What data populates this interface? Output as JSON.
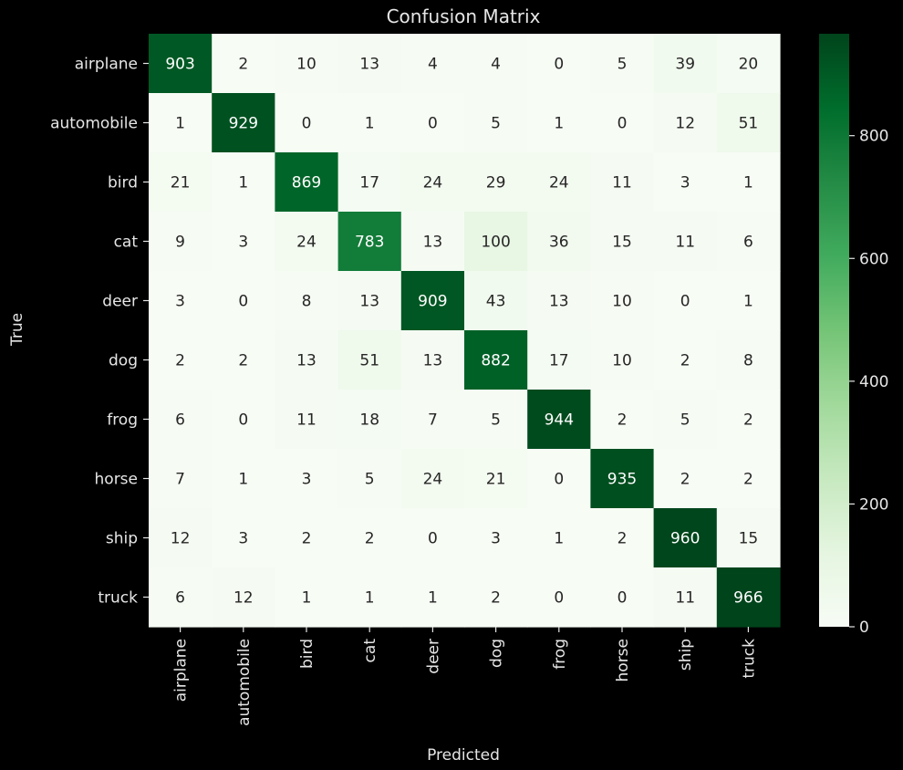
{
  "chart_data": {
    "type": "heatmap",
    "title": "Confusion Matrix",
    "xlabel": "Predicted",
    "ylabel": "True",
    "x_categories": [
      "airplane",
      "automobile",
      "bird",
      "cat",
      "deer",
      "dog",
      "frog",
      "horse",
      "ship",
      "truck"
    ],
    "y_categories": [
      "airplane",
      "automobile",
      "bird",
      "cat",
      "deer",
      "dog",
      "frog",
      "horse",
      "ship",
      "truck"
    ],
    "values": [
      [
        903,
        2,
        10,
        13,
        4,
        4,
        0,
        5,
        39,
        20
      ],
      [
        1,
        929,
        0,
        1,
        0,
        5,
        1,
        0,
        12,
        51
      ],
      [
        21,
        1,
        869,
        17,
        24,
        29,
        24,
        11,
        3,
        1
      ],
      [
        9,
        3,
        24,
        783,
        13,
        100,
        36,
        15,
        11,
        6
      ],
      [
        3,
        0,
        8,
        13,
        909,
        43,
        13,
        10,
        0,
        1
      ],
      [
        2,
        2,
        13,
        51,
        13,
        882,
        17,
        10,
        2,
        8
      ],
      [
        6,
        0,
        11,
        18,
        7,
        5,
        944,
        2,
        5,
        2
      ],
      [
        7,
        1,
        3,
        5,
        24,
        21,
        0,
        935,
        2,
        2
      ],
      [
        12,
        3,
        2,
        2,
        0,
        3,
        1,
        2,
        960,
        15
      ],
      [
        6,
        12,
        1,
        1,
        1,
        2,
        0,
        0,
        11,
        966
      ]
    ],
    "colorbar": {
      "range": [
        0,
        966
      ],
      "ticks": [
        0,
        200,
        400,
        600,
        800
      ],
      "colormap": "Greens"
    },
    "colors": {
      "background": "#000000",
      "text": "#e6e6e6",
      "low": "#f7fcf5",
      "high": "#00441b"
    }
  }
}
